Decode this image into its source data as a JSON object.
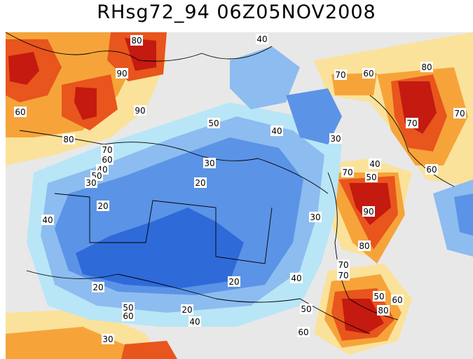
{
  "title": "RHsg72_94  06Z05NOV2008",
  "palette": {
    "c10": "#2f6ad9",
    "c20": "#5b93e6",
    "c30": "#8dbcf0",
    "c40": "#b8e6f7",
    "c50": "#e8e8e8",
    "c60": "#fbe29a",
    "c70": "#f6a43a",
    "c80": "#e8551d",
    "c90": "#c41a10"
  },
  "contour_labels": [
    "80",
    "90",
    "40",
    "70",
    "60",
    "80",
    "90",
    "70",
    "60",
    "50",
    "80",
    "70",
    "60",
    "40",
    "50",
    "30",
    "20",
    "40",
    "50",
    "40",
    "30",
    "30",
    "20",
    "20",
    "30",
    "70",
    "90",
    "80",
    "20",
    "40",
    "70",
    "70",
    "20",
    "40",
    "50",
    "60",
    "50",
    "80",
    "60",
    "50",
    "60",
    "30",
    "40",
    "60",
    "70"
  ]
}
